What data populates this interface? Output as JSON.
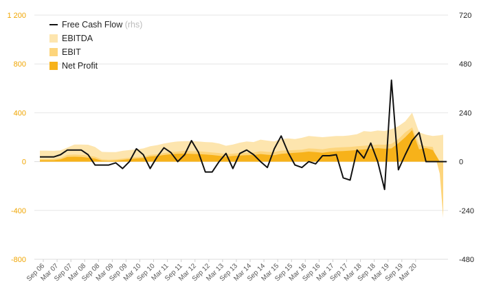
{
  "colors": {
    "ebitda": "#fde5ae",
    "ebit": "#fdd57c",
    "net_profit": "#f7b21a",
    "fcf": "#111111",
    "left_axis_text": "#f0a500",
    "right_axis_text": "#222222",
    "grid": "#e6e6e6"
  },
  "chart_data": {
    "type": "area",
    "grid": true,
    "legend_position": "top-left",
    "x_ticks": [
      "Sep 06",
      "Mar 07",
      "Sep 07",
      "Mar 08",
      "Sep 08",
      "Mar 09",
      "Sep 09",
      "Mar 10",
      "Sep 10",
      "Mar 11",
      "Sep 11",
      "Mar 12",
      "Sep 12",
      "Mar 13",
      "Sep 13",
      "Mar 14",
      "Sep 14",
      "Mar 15",
      "Sep 15",
      "Mar 16",
      "Sep 16",
      "Mar 17",
      "Sep 17",
      "Mar 18",
      "Sep 18",
      "Mar 19",
      "Sep 19",
      "Mar 20"
    ],
    "left_axis": {
      "ylim": [
        -800,
        1200
      ],
      "ticks": [
        1200,
        800,
        400,
        0,
        -400,
        -800
      ],
      "tick_labels": [
        "1 200",
        "800",
        "400",
        "0",
        "-400",
        "-800"
      ]
    },
    "right_axis": {
      "ylim": [
        -480,
        720
      ],
      "ticks": [
        720,
        480,
        240,
        0,
        -240,
        -480
      ],
      "tick_labels": [
        "720",
        "480",
        "240",
        "0",
        "-240",
        "-480"
      ]
    },
    "series": [
      {
        "name": "EBITDA",
        "axis": "left",
        "kind": "area",
        "x": [
          0,
          1,
          2,
          3,
          4,
          5,
          6,
          7,
          8,
          9,
          10,
          11,
          12,
          13,
          14,
          15,
          16,
          17,
          18,
          19,
          20,
          21,
          22,
          23,
          24,
          25,
          26,
          27,
          28,
          29,
          30,
          31,
          32,
          33,
          34,
          35,
          36,
          37,
          38,
          39,
          40,
          41,
          42,
          43,
          44,
          45,
          46,
          47,
          48,
          49,
          50,
          51,
          52,
          53,
          54,
          55,
          56,
          57,
          58,
          58.5
        ],
        "values": [
          90,
          90,
          88,
          92,
          115,
          140,
          140,
          138,
          120,
          80,
          78,
          78,
          88,
          95,
          100,
          108,
          125,
          135,
          148,
          158,
          165,
          168,
          168,
          165,
          160,
          158,
          148,
          130,
          140,
          155,
          165,
          160,
          180,
          172,
          165,
          185,
          190,
          185,
          195,
          210,
          205,
          200,
          205,
          210,
          210,
          215,
          225,
          250,
          245,
          255,
          250,
          265,
          290,
          330,
          400,
          240,
          220,
          210,
          215,
          220
        ]
      },
      {
        "name": "EBIT",
        "axis": "left",
        "kind": "area",
        "x": [
          0,
          1,
          2,
          3,
          4,
          5,
          6,
          7,
          8,
          9,
          10,
          11,
          12,
          13,
          14,
          15,
          16,
          17,
          18,
          19,
          20,
          21,
          22,
          23,
          24,
          25,
          26,
          27,
          28,
          29,
          30,
          31,
          32,
          33,
          34,
          35,
          36,
          37,
          38,
          39,
          40,
          41,
          42,
          43,
          44,
          45,
          46,
          47,
          48,
          49,
          50,
          51,
          52,
          53,
          54,
          55,
          56,
          57,
          58,
          58.5
        ],
        "values": [
          20,
          20,
          22,
          30,
          55,
          58,
          55,
          50,
          40,
          18,
          15,
          18,
          25,
          32,
          38,
          40,
          55,
          60,
          70,
          78,
          82,
          88,
          85,
          85,
          80,
          75,
          70,
          60,
          65,
          70,
          72,
          75,
          85,
          80,
          78,
          90,
          92,
          95,
          98,
          108,
          105,
          100,
          110,
          115,
          118,
          120,
          125,
          130,
          135,
          140,
          138,
          145,
          185,
          240,
          280,
          140,
          125,
          120,
          -100,
          -460
        ]
      },
      {
        "name": "Net Profit",
        "axis": "left",
        "kind": "area",
        "x": [
          0,
          1,
          2,
          3,
          4,
          5,
          6,
          7,
          8,
          9,
          10,
          11,
          12,
          13,
          14,
          15,
          16,
          17,
          18,
          19,
          20,
          21,
          22,
          23,
          24,
          25,
          26,
          27,
          28,
          29,
          30,
          31,
          32,
          33,
          34,
          35,
          36,
          37,
          38,
          39,
          40,
          41,
          42,
          43,
          44,
          45,
          46,
          47,
          48,
          49,
          50,
          51,
          52,
          53,
          54,
          55,
          56,
          57,
          58,
          58.5
        ],
        "values": [
          12,
          12,
          12,
          18,
          38,
          40,
          38,
          32,
          25,
          8,
          5,
          8,
          14,
          20,
          26,
          30,
          42,
          46,
          54,
          60,
          64,
          66,
          63,
          62,
          58,
          54,
          48,
          40,
          46,
          50,
          52,
          54,
          62,
          56,
          52,
          64,
          68,
          72,
          76,
          82,
          78,
          72,
          80,
          84,
          86,
          90,
          95,
          100,
          104,
          110,
          105,
          108,
          150,
          200,
          258,
          100,
          112,
          95,
          0,
          0
        ]
      },
      {
        "name": "Free Cash Flow",
        "axis": "right",
        "kind": "line",
        "note": "(rhs)",
        "x": [
          0,
          1,
          2,
          3,
          4,
          5,
          6,
          7,
          8,
          9,
          10,
          11,
          12,
          13,
          14,
          15,
          16,
          17,
          18,
          19,
          20,
          21,
          22,
          23,
          24,
          25,
          26,
          27,
          28,
          29,
          30,
          31,
          32,
          33,
          34,
          35,
          36,
          37,
          38,
          39,
          40,
          41,
          42,
          43,
          44,
          45,
          46,
          47,
          48,
          49,
          50,
          51,
          52,
          53,
          54,
          55,
          56,
          57,
          58,
          59
        ],
        "values": [
          23,
          23,
          23,
          34,
          57,
          57,
          57,
          34,
          -17,
          -17,
          -17,
          -6,
          -34,
          0,
          63,
          34,
          -34,
          23,
          68,
          45,
          0,
          34,
          103,
          46,
          -51,
          -51,
          0,
          40,
          -34,
          40,
          57,
          34,
          0,
          -29,
          63,
          126,
          46,
          -17,
          -29,
          0,
          -11,
          29,
          29,
          34,
          -80,
          -91,
          57,
          17,
          91,
          0,
          -137,
          400,
          -40,
          34,
          103,
          143,
          0,
          0,
          0,
          0
        ]
      }
    ]
  }
}
